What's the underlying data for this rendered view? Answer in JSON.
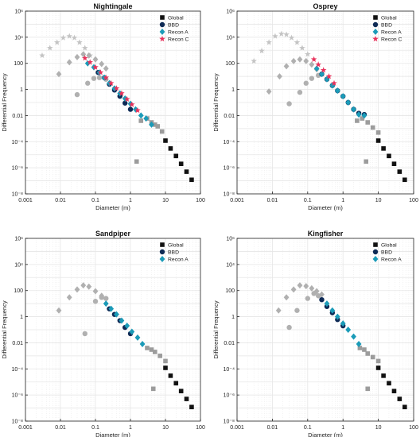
{
  "colors": {
    "global": "#111111",
    "bbd": "#0e2a55",
    "recon_a": "#1b9bb8",
    "recon_c": "#e8335c",
    "gray_light": "#c4c4c4",
    "gray_mid": "#b0b0b0",
    "gray_dark": "#9c9c9c",
    "grid": "#e6e6e6"
  },
  "chart_data": [
    {
      "type": "scatter",
      "title": "Nightingale",
      "xlabel": "Diameter (m)",
      "ylabel": "Differential Frequency",
      "xscale": "log",
      "yscale": "log",
      "xlim": [
        0.001,
        100
      ],
      "ylim": [
        1e-08,
        1000000.0
      ],
      "x_ticks": [
        "0.001",
        "0.01",
        "0.1",
        "1",
        "10",
        "100"
      ],
      "y_ticks": [
        "10⁻⁸",
        "10⁻⁶",
        "10⁻⁴",
        "0.01",
        "1",
        "100",
        "10⁴",
        "10⁶"
      ],
      "grid": true,
      "legend_position": "top-right",
      "series": [
        {
          "legend": "Global",
          "marker": "square",
          "color": "global",
          "x": [
            10,
            14,
            20,
            28,
            40,
            56
          ],
          "y": [
            0.00012,
            3e-05,
            8e-06,
            2e-06,
            5e-07,
            1.2e-07
          ]
        },
        {
          "legend": "BBD",
          "marker": "circle",
          "color": "bbd",
          "x": [
            0.12,
            0.18,
            0.25,
            0.35,
            0.5,
            0.7,
            1.0
          ],
          "y": [
            20,
            8,
            2.5,
            0.9,
            0.3,
            0.09,
            0.03
          ]
        },
        {
          "legend": "Recon A",
          "marker": "diamond",
          "color": "recon_a",
          "x": [
            0.06,
            0.09,
            0.13,
            0.18,
            0.25,
            0.35,
            0.5,
            0.7,
            1.0,
            1.4,
            2.0,
            2.8,
            4.0
          ],
          "y": [
            100,
            50,
            20,
            8,
            3,
            1.2,
            0.5,
            0.2,
            0.08,
            0.03,
            0.01,
            0.006,
            0.002
          ]
        },
        {
          "legend": "Recon C",
          "marker": "star",
          "color": "recon_c",
          "x": [
            0.05,
            0.07,
            0.1,
            0.14,
            0.2,
            0.28,
            0.4,
            0.56,
            0.8,
            1.1,
            1.6
          ],
          "y": [
            250,
            120,
            50,
            20,
            8,
            3,
            1.2,
            0.5,
            0.18,
            0.07,
            0.025
          ]
        },
        {
          "marker": "star",
          "color": "gray_light",
          "x": [
            0.003,
            0.005,
            0.008,
            0.012,
            0.018,
            0.025,
            0.035,
            0.05,
            0.07
          ],
          "y": [
            400,
            1500,
            4000,
            9000,
            12000,
            9000,
            4000,
            1500,
            400
          ]
        },
        {
          "marker": "diamond",
          "color": "gray_mid",
          "x": [
            0.009,
            0.018,
            0.03,
            0.045,
            0.065,
            0.1,
            0.15,
            0.2
          ],
          "y": [
            15,
            120,
            300,
            500,
            400,
            200,
            90,
            40
          ]
        },
        {
          "marker": "circle",
          "color": "gray_mid",
          "x": [
            0.03,
            0.06,
            0.09,
            0.13,
            0.2
          ],
          "y": [
            0.4,
            3,
            7,
            8,
            6
          ]
        },
        {
          "marker": "square",
          "color": "gray_dark",
          "x": [
            2,
            3,
            4,
            5,
            6,
            8,
            1.5
          ],
          "y": [
            0.004,
            0.006,
            0.003,
            0.002,
            0.0015,
            0.0006,
            3e-06
          ]
        }
      ]
    },
    {
      "type": "scatter",
      "title": "Osprey",
      "xlabel": "Diameter (m)",
      "ylabel": "Differential Frequency",
      "xscale": "log",
      "yscale": "log",
      "xlim": [
        0.001,
        100
      ],
      "ylim": [
        1e-08,
        1000000.0
      ],
      "x_ticks": [
        "0.001",
        "0.01",
        "0.1",
        "1",
        "10",
        "100"
      ],
      "y_ticks": [
        "10⁻⁸",
        "10⁻⁶",
        "10⁻⁴",
        "0.01",
        "1",
        "100",
        "10⁴",
        "10⁶"
      ],
      "grid": true,
      "legend_position": "top-right",
      "series": [
        {
          "legend": "Global",
          "marker": "square",
          "color": "global",
          "x": [
            10,
            14,
            20,
            28,
            40,
            56
          ],
          "y": [
            0.00012,
            3e-05,
            8e-06,
            2e-06,
            5e-07,
            1.2e-07
          ]
        },
        {
          "legend": "BBD",
          "marker": "circle",
          "color": "bbd",
          "x": [
            0.25,
            0.35,
            0.5,
            0.7,
            1.0,
            1.4,
            2.0,
            2.8,
            4.0
          ],
          "y": [
            15,
            6,
            2,
            0.8,
            0.3,
            0.1,
            0.03,
            0.015,
            0.012
          ]
        },
        {
          "legend": "Recon A",
          "marker": "diamond",
          "color": "recon_a",
          "x": [
            0.18,
            0.25,
            0.35,
            0.5,
            0.7,
            1.0,
            1.4,
            2.0,
            2.8,
            4.0
          ],
          "y": [
            40,
            15,
            6,
            2,
            0.8,
            0.3,
            0.1,
            0.03,
            0.012,
            0.01
          ]
        },
        {
          "legend": "Recon C",
          "marker": "star",
          "color": "recon_c",
          "x": [
            0.15,
            0.2,
            0.28,
            0.4,
            0.56
          ],
          "y": [
            200,
            80,
            30,
            10,
            3
          ]
        },
        {
          "marker": "star",
          "color": "gray_light",
          "x": [
            0.003,
            0.005,
            0.008,
            0.012,
            0.018,
            0.025,
            0.035,
            0.05,
            0.07,
            0.1
          ],
          "y": [
            150,
            900,
            4000,
            12000,
            18000,
            16000,
            9000,
            4000,
            1500,
            500
          ]
        },
        {
          "marker": "diamond",
          "color": "gray_mid",
          "x": [
            0.008,
            0.016,
            0.025,
            0.04,
            0.06,
            0.09,
            0.13,
            0.18
          ],
          "y": [
            0.7,
            10,
            60,
            150,
            200,
            150,
            80,
            35
          ]
        },
        {
          "marker": "circle",
          "color": "gray_mid",
          "x": [
            0.03,
            0.06,
            0.09,
            0.13,
            0.2
          ],
          "y": [
            0.08,
            0.6,
            3,
            7,
            12
          ]
        },
        {
          "marker": "square",
          "color": "gray_dark",
          "x": [
            2.5,
            3.5,
            5,
            7,
            10,
            4.5
          ],
          "y": [
            0.004,
            0.006,
            0.003,
            0.0012,
            0.0005,
            3e-06
          ]
        }
      ]
    },
    {
      "type": "scatter",
      "title": "Sandpiper",
      "xlabel": "Diameter (m)",
      "ylabel": "Differential Frequency",
      "xscale": "log",
      "yscale": "log",
      "xlim": [
        0.001,
        100
      ],
      "ylim": [
        1e-08,
        1000000.0
      ],
      "x_ticks": [
        "0.001",
        "0.01",
        "0.1",
        "1",
        "10",
        "100"
      ],
      "y_ticks": [
        "10⁻⁸",
        "10⁻⁶",
        "10⁻⁴",
        "0.01",
        "1",
        "100",
        "10⁴",
        "10⁶"
      ],
      "grid": true,
      "legend_position": "top-right",
      "series": [
        {
          "legend": "Global",
          "marker": "square",
          "color": "global",
          "x": [
            10,
            14,
            20,
            28,
            40,
            56
          ],
          "y": [
            0.00012,
            3e-05,
            8e-06,
            2e-06,
            5e-07,
            1.2e-07
          ]
        },
        {
          "legend": "BBD",
          "marker": "circle",
          "color": "bbd",
          "x": [
            0.25,
            0.35,
            0.5,
            0.7,
            1.0
          ],
          "y": [
            4,
            1.5,
            0.5,
            0.15,
            0.05
          ]
        },
        {
          "legend": "Recon A",
          "marker": "diamond",
          "color": "recon_a",
          "x": [
            0.2,
            0.28,
            0.4,
            0.56,
            0.8,
            1.1,
            1.6,
            2.2
          ],
          "y": [
            10,
            4,
            1.5,
            0.5,
            0.2,
            0.07,
            0.025,
            0.008
          ]
        },
        {
          "marker": "diamond",
          "color": "gray_mid",
          "x": [
            0.009,
            0.018,
            0.03,
            0.045,
            0.065,
            0.1,
            0.15
          ],
          "y": [
            3,
            30,
            120,
            250,
            200,
            90,
            40
          ]
        },
        {
          "marker": "circle",
          "color": "gray_mid",
          "x": [
            0.05,
            0.1,
            0.15,
            0.2
          ],
          "y": [
            0.05,
            15,
            30,
            25
          ]
        },
        {
          "marker": "square",
          "color": "gray_dark",
          "x": [
            3,
            4,
            5,
            7,
            10,
            4.5
          ],
          "y": [
            0.004,
            0.003,
            0.002,
            0.001,
            0.0004,
            3e-06
          ]
        }
      ]
    },
    {
      "type": "scatter",
      "title": "Kingfisher",
      "xlabel": "Diameter (m)",
      "ylabel": "Differential Frequency",
      "xscale": "log",
      "yscale": "log",
      "xlim": [
        0.001,
        100
      ],
      "ylim": [
        1e-08,
        1000000.0
      ],
      "x_ticks": [
        "0.001",
        "0.01",
        "0.1",
        "1",
        "10",
        "100"
      ],
      "y_ticks": [
        "10⁻⁸",
        "10⁻⁶",
        "10⁻⁴",
        "0.01",
        "1",
        "100",
        "10⁴",
        "10⁶"
      ],
      "grid": true,
      "legend_position": "top-right",
      "series": [
        {
          "legend": "Global",
          "marker": "square",
          "color": "global",
          "x": [
            10,
            14,
            20,
            28,
            40,
            56
          ],
          "y": [
            0.00012,
            3e-05,
            8e-06,
            2e-06,
            5e-07,
            1.2e-07
          ]
        },
        {
          "legend": "BBD",
          "marker": "circle",
          "color": "bbd",
          "x": [
            0.25,
            0.35,
            0.5,
            0.7,
            1.0
          ],
          "y": [
            20,
            6,
            2,
            0.6,
            0.2
          ]
        },
        {
          "legend": "Recon A",
          "marker": "diamond",
          "color": "recon_a",
          "x": [
            0.35,
            0.5,
            0.7,
            1.0,
            1.4,
            2.0,
            2.8
          ],
          "y": [
            10,
            3,
            1,
            0.3,
            0.1,
            0.03,
            0.008
          ]
        },
        {
          "marker": "diamond",
          "color": "gray_mid",
          "x": [
            0.015,
            0.025,
            0.04,
            0.06,
            0.09,
            0.13,
            0.18,
            0.25
          ],
          "y": [
            3,
            30,
            120,
            250,
            220,
            150,
            90,
            50
          ]
        },
        {
          "marker": "circle",
          "color": "gray_mid",
          "x": [
            0.03,
            0.05,
            0.1,
            0.15,
            0.2
          ],
          "y": [
            0.15,
            3,
            25,
            60,
            40
          ]
        },
        {
          "marker": "square",
          "color": "gray_dark",
          "x": [
            3,
            4,
            5,
            7,
            10,
            5
          ],
          "y": [
            0.004,
            0.003,
            0.0015,
            0.0008,
            0.0004,
            3e-06
          ]
        }
      ]
    }
  ]
}
